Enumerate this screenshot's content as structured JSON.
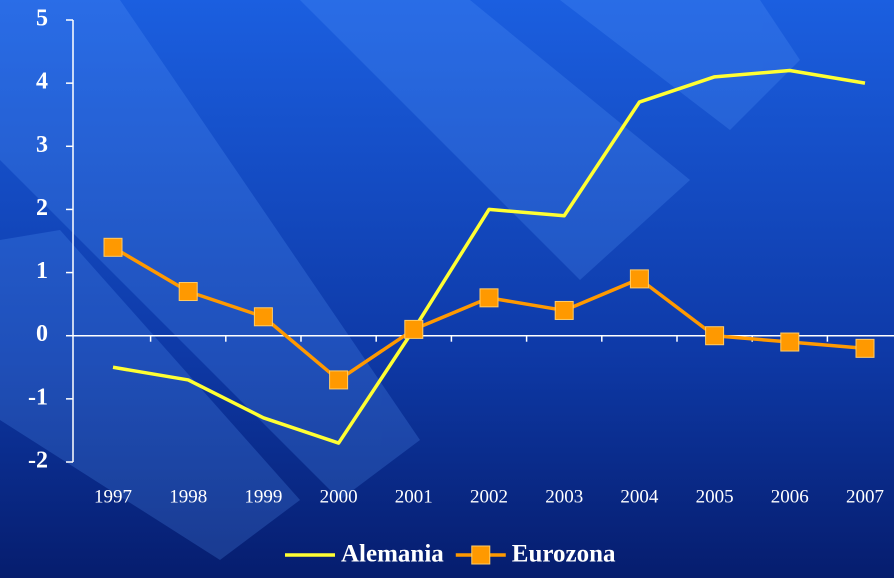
{
  "chart_data": {
    "type": "line",
    "categories": [
      "1997",
      "1998",
      "1999",
      "2000",
      "2001",
      "2002",
      "2003",
      "2004",
      "2005",
      "2006",
      "2007"
    ],
    "series": [
      {
        "name": "Alemania",
        "color": "#ffff33",
        "values": [
          -0.5,
          -0.7,
          -1.3,
          -1.7,
          0.1,
          2.0,
          1.9,
          3.7,
          4.1,
          4.2,
          4.0
        ]
      },
      {
        "name": "Eurozona",
        "color": "#ff9900",
        "values": [
          1.4,
          0.7,
          0.3,
          -0.7,
          0.1,
          0.6,
          0.4,
          0.9,
          0.0,
          -0.1,
          -0.2
        ]
      }
    ],
    "ylim": [
      -2,
      5
    ],
    "yticks": [
      -2,
      -1,
      0,
      1,
      2,
      3,
      4,
      5
    ],
    "legend": "bottom"
  }
}
